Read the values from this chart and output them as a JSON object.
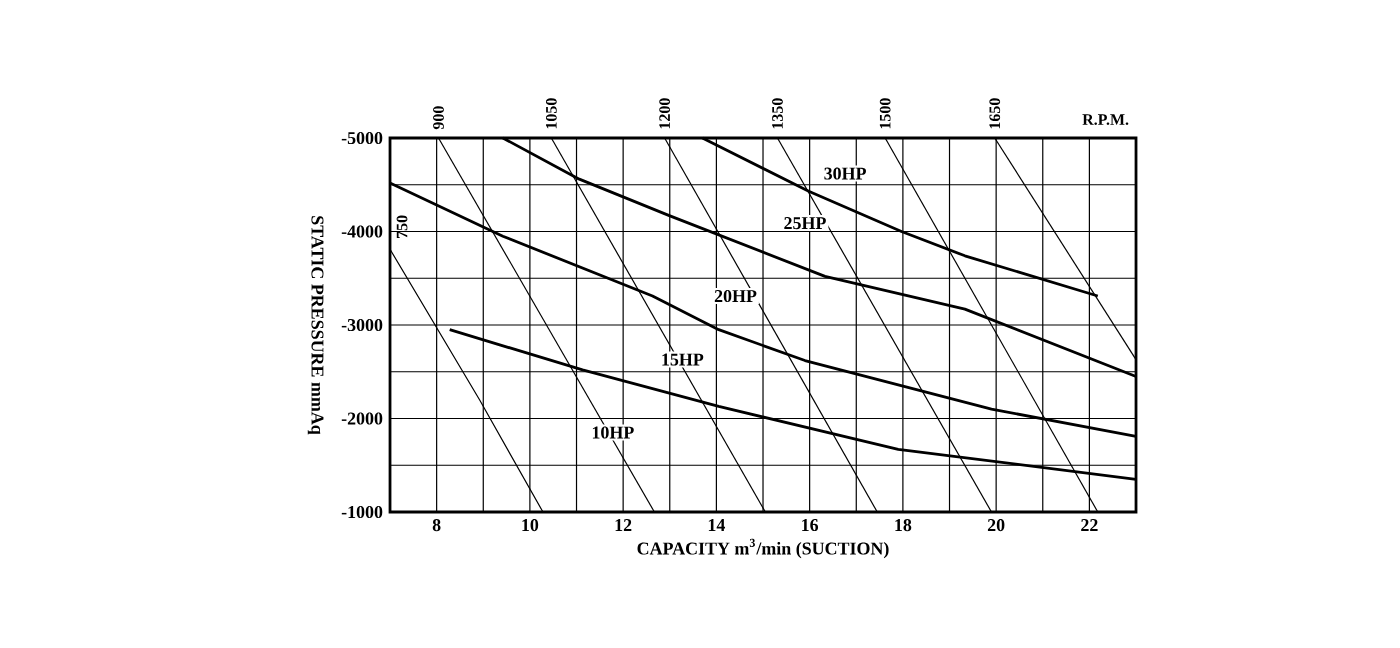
{
  "chart_data": {
    "type": "line",
    "xlabel": "CAPACITY m$^{3}$/min (SUCTION)",
    "ylabel": "STATIC PRESSURE mmAq",
    "xlim": [
      7,
      23
    ],
    "ylim": [
      -1000,
      -5000
    ],
    "xticks": [
      8,
      10,
      12,
      14,
      16,
      18,
      20,
      22
    ],
    "yticks": [
      -5000,
      -4000,
      -3000,
      -2000,
      -1000
    ],
    "grid": true,
    "marker": "none",
    "line_style": "solid",
    "series": [
      {
        "color": "#000000",
        "x": [
          9.42,
          11.06,
          12.99,
          16.33,
          19.33,
          23
        ],
        "values": [
          -5000,
          -4560,
          -4170,
          -3520,
          -3170,
          -2450
        ]
      },
      {
        "color": "#000000",
        "x": [
          13.7,
          15.98,
          17.97,
          19.33,
          22.18
        ],
        "values": [
          -5000,
          -4430,
          -4000,
          -3740,
          -3310
        ]
      },
      {
        "color": "#000000",
        "x": [
          7,
          9.42,
          12.63,
          14.05,
          15.9,
          19.9,
          23
        ],
        "values": [
          -4520,
          -3950,
          -3310,
          -2950,
          -2620,
          -2100,
          -1810
        ]
      },
      {
        "color": "#000000",
        "x": [
          8.28,
          11.13,
          14.05,
          17.9,
          23
        ],
        "values": [
          -2950,
          -2520,
          -2130,
          -1670,
          -1350
        ]
      },
      {
        "name": "750",
        "color": "#000000",
        "x": [
          7,
          8.92,
          10.28
        ],
        "values": [
          -3810,
          -2200,
          -1000
        ]
      },
      {
        "name": "900",
        "color": "#000000",
        "x": [
          8.04,
          12.67
        ],
        "values": [
          -5000,
          -1000
        ]
      },
      {
        "name": "1050",
        "color": "#000000",
        "x": [
          10.46,
          15.05
        ],
        "values": [
          -5000,
          -1000
        ]
      },
      {
        "name": "1200",
        "color": "#000000",
        "x": [
          12.89,
          17.45
        ],
        "values": [
          -5000,
          -1000
        ]
      },
      {
        "name": "1350",
        "color": "#000000",
        "x": [
          15.31,
          19.9
        ],
        "values": [
          -5000,
          -1000
        ]
      },
      {
        "name": "1500",
        "color": "#000000",
        "x": [
          17.62,
          22.18
        ],
        "values": [
          -5000,
          -1000
        ]
      },
      {
        "name": "1650",
        "color": "#000000",
        "x": [
          19.97,
          23
        ],
        "values": [
          -5000,
          -2630
        ]
      }
    ],
    "annotations": [
      "R.P.M.",
      {
        "text": "30HP",
        "x": 16.76,
        "y": -4620
      },
      {
        "text": "25HP",
        "x": 15.9,
        "y": -4090
      },
      {
        "text": "20HP",
        "x": 14.41,
        "y": -3310
      },
      {
        "text": "15HP",
        "x": 13.27,
        "y": -2630
      },
      {
        "text": "10HP",
        "x": 11.78,
        "y": -1850
      }
    ]
  }
}
